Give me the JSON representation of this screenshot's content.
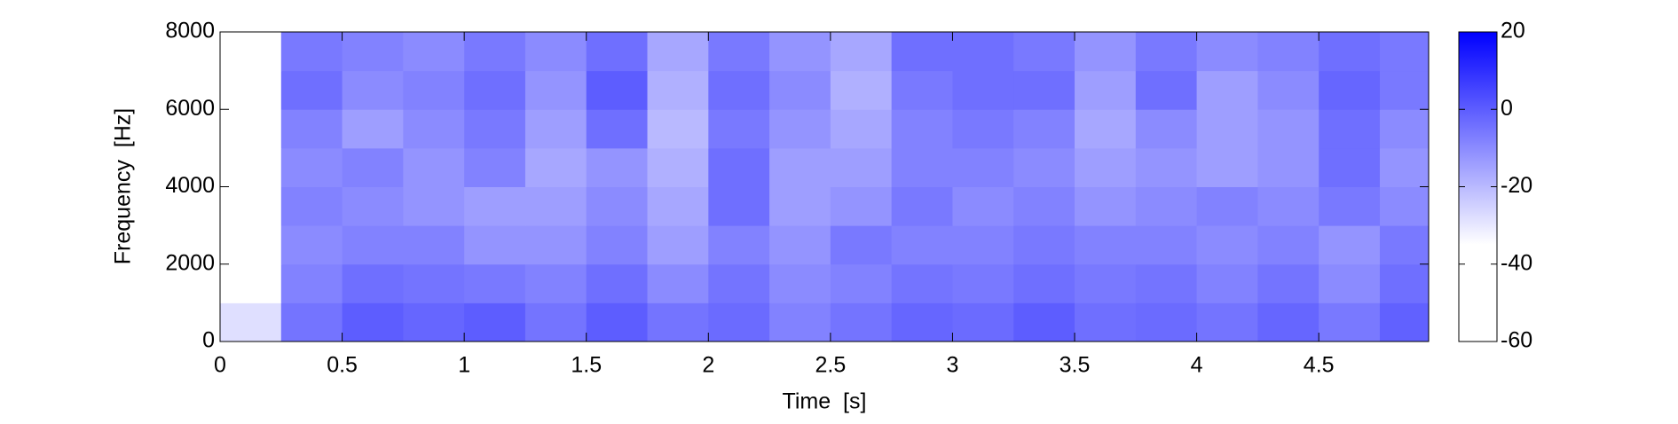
{
  "chart_data": {
    "type": "heatmap",
    "xlabel": "Time  [s]",
    "ylabel": "Frequency  [Hz]",
    "x": [
      0.125,
      0.375,
      0.625,
      0.875,
      1.125,
      1.375,
      1.625,
      1.875,
      2.125,
      2.375,
      2.625,
      2.875,
      3.125,
      3.375,
      3.625,
      3.875,
      4.125,
      4.375,
      4.625,
      4.875
    ],
    "y": [
      500,
      1500,
      2500,
      3500,
      4500,
      5500,
      6500,
      7500
    ],
    "z": [
      [
        -28,
        -5,
        0,
        -2,
        0,
        -5,
        0,
        -5,
        -3,
        -8,
        -5,
        -2,
        -3,
        0,
        -4,
        -3,
        -5,
        -2,
        -6,
        -1
      ],
      [
        -40,
        -8,
        -4,
        -5,
        -6,
        -8,
        -4,
        -10,
        -5,
        -10,
        -8,
        -5,
        -6,
        -4,
        -6,
        -5,
        -8,
        -5,
        -10,
        -4
      ],
      [
        -45,
        -10,
        -8,
        -8,
        -12,
        -12,
        -8,
        -14,
        -8,
        -12,
        -6,
        -8,
        -8,
        -6,
        -8,
        -8,
        -10,
        -8,
        -12,
        -6
      ],
      [
        -48,
        -8,
        -10,
        -12,
        -14,
        -14,
        -10,
        -16,
        -4,
        -14,
        -12,
        -6,
        -10,
        -8,
        -12,
        -10,
        -8,
        -10,
        -6,
        -10
      ],
      [
        -50,
        -10,
        -8,
        -12,
        -8,
        -16,
        -12,
        -18,
        -4,
        -14,
        -14,
        -8,
        -8,
        -10,
        -14,
        -12,
        -14,
        -12,
        -4,
        -12
      ],
      [
        -50,
        -8,
        -14,
        -10,
        -6,
        -14,
        -4,
        -20,
        -6,
        -12,
        -16,
        -8,
        -6,
        -8,
        -16,
        -10,
        -14,
        -12,
        -4,
        -10
      ],
      [
        -50,
        -4,
        -10,
        -8,
        -4,
        -12,
        0,
        -18,
        -4,
        -10,
        -18,
        -6,
        -4,
        -4,
        -14,
        -4,
        -14,
        -10,
        -2,
        -6
      ],
      [
        -50,
        -6,
        -8,
        -10,
        -6,
        -10,
        -4,
        -16,
        -6,
        -12,
        -16,
        -4,
        -4,
        -6,
        -12,
        -6,
        -10,
        -8,
        -4,
        -6
      ]
    ],
    "xlim": [
      0,
      4.95
    ],
    "ylim": [
      0,
      8000
    ],
    "xticks": [
      0,
      0.5,
      1,
      1.5,
      2,
      2.5,
      3,
      3.5,
      4,
      4.5
    ],
    "yticks": [
      0,
      2000,
      4000,
      6000,
      8000
    ],
    "colormap": [
      {
        "value": -60,
        "color": "#ffffff"
      },
      {
        "value": -35,
        "color": "#ffffff"
      },
      {
        "value": 20,
        "color": "#0000ff"
      }
    ],
    "clim": [
      -60,
      20
    ],
    "cticks": [
      -60,
      -40,
      -20,
      0,
      20
    ]
  }
}
